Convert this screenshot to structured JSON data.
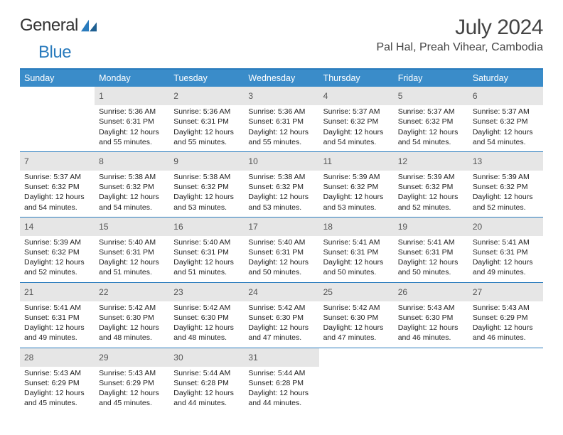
{
  "brand": {
    "word1": "General",
    "word2": "Blue"
  },
  "title": "July 2024",
  "location": "Pal Hal, Preah Vihear, Cambodia",
  "colors": {
    "accent": "#2a7bbd",
    "header_bg": "#3a8cc9",
    "day_bg": "#e6e6e6"
  },
  "weekdays": [
    "Sunday",
    "Monday",
    "Tuesday",
    "Wednesday",
    "Thursday",
    "Friday",
    "Saturday"
  ],
  "weeks": [
    [
      null,
      {
        "n": "1",
        "sr": "Sunrise: 5:36 AM",
        "ss": "Sunset: 6:31 PM",
        "dl": "Daylight: 12 hours and 55 minutes."
      },
      {
        "n": "2",
        "sr": "Sunrise: 5:36 AM",
        "ss": "Sunset: 6:31 PM",
        "dl": "Daylight: 12 hours and 55 minutes."
      },
      {
        "n": "3",
        "sr": "Sunrise: 5:36 AM",
        "ss": "Sunset: 6:31 PM",
        "dl": "Daylight: 12 hours and 55 minutes."
      },
      {
        "n": "4",
        "sr": "Sunrise: 5:37 AM",
        "ss": "Sunset: 6:32 PM",
        "dl": "Daylight: 12 hours and 54 minutes."
      },
      {
        "n": "5",
        "sr": "Sunrise: 5:37 AM",
        "ss": "Sunset: 6:32 PM",
        "dl": "Daylight: 12 hours and 54 minutes."
      },
      {
        "n": "6",
        "sr": "Sunrise: 5:37 AM",
        "ss": "Sunset: 6:32 PM",
        "dl": "Daylight: 12 hours and 54 minutes."
      }
    ],
    [
      {
        "n": "7",
        "sr": "Sunrise: 5:37 AM",
        "ss": "Sunset: 6:32 PM",
        "dl": "Daylight: 12 hours and 54 minutes."
      },
      {
        "n": "8",
        "sr": "Sunrise: 5:38 AM",
        "ss": "Sunset: 6:32 PM",
        "dl": "Daylight: 12 hours and 54 minutes."
      },
      {
        "n": "9",
        "sr": "Sunrise: 5:38 AM",
        "ss": "Sunset: 6:32 PM",
        "dl": "Daylight: 12 hours and 53 minutes."
      },
      {
        "n": "10",
        "sr": "Sunrise: 5:38 AM",
        "ss": "Sunset: 6:32 PM",
        "dl": "Daylight: 12 hours and 53 minutes."
      },
      {
        "n": "11",
        "sr": "Sunrise: 5:39 AM",
        "ss": "Sunset: 6:32 PM",
        "dl": "Daylight: 12 hours and 53 minutes."
      },
      {
        "n": "12",
        "sr": "Sunrise: 5:39 AM",
        "ss": "Sunset: 6:32 PM",
        "dl": "Daylight: 12 hours and 52 minutes."
      },
      {
        "n": "13",
        "sr": "Sunrise: 5:39 AM",
        "ss": "Sunset: 6:32 PM",
        "dl": "Daylight: 12 hours and 52 minutes."
      }
    ],
    [
      {
        "n": "14",
        "sr": "Sunrise: 5:39 AM",
        "ss": "Sunset: 6:32 PM",
        "dl": "Daylight: 12 hours and 52 minutes."
      },
      {
        "n": "15",
        "sr": "Sunrise: 5:40 AM",
        "ss": "Sunset: 6:31 PM",
        "dl": "Daylight: 12 hours and 51 minutes."
      },
      {
        "n": "16",
        "sr": "Sunrise: 5:40 AM",
        "ss": "Sunset: 6:31 PM",
        "dl": "Daylight: 12 hours and 51 minutes."
      },
      {
        "n": "17",
        "sr": "Sunrise: 5:40 AM",
        "ss": "Sunset: 6:31 PM",
        "dl": "Daylight: 12 hours and 50 minutes."
      },
      {
        "n": "18",
        "sr": "Sunrise: 5:41 AM",
        "ss": "Sunset: 6:31 PM",
        "dl": "Daylight: 12 hours and 50 minutes."
      },
      {
        "n": "19",
        "sr": "Sunrise: 5:41 AM",
        "ss": "Sunset: 6:31 PM",
        "dl": "Daylight: 12 hours and 50 minutes."
      },
      {
        "n": "20",
        "sr": "Sunrise: 5:41 AM",
        "ss": "Sunset: 6:31 PM",
        "dl": "Daylight: 12 hours and 49 minutes."
      }
    ],
    [
      {
        "n": "21",
        "sr": "Sunrise: 5:41 AM",
        "ss": "Sunset: 6:31 PM",
        "dl": "Daylight: 12 hours and 49 minutes."
      },
      {
        "n": "22",
        "sr": "Sunrise: 5:42 AM",
        "ss": "Sunset: 6:30 PM",
        "dl": "Daylight: 12 hours and 48 minutes."
      },
      {
        "n": "23",
        "sr": "Sunrise: 5:42 AM",
        "ss": "Sunset: 6:30 PM",
        "dl": "Daylight: 12 hours and 48 minutes."
      },
      {
        "n": "24",
        "sr": "Sunrise: 5:42 AM",
        "ss": "Sunset: 6:30 PM",
        "dl": "Daylight: 12 hours and 47 minutes."
      },
      {
        "n": "25",
        "sr": "Sunrise: 5:42 AM",
        "ss": "Sunset: 6:30 PM",
        "dl": "Daylight: 12 hours and 47 minutes."
      },
      {
        "n": "26",
        "sr": "Sunrise: 5:43 AM",
        "ss": "Sunset: 6:30 PM",
        "dl": "Daylight: 12 hours and 46 minutes."
      },
      {
        "n": "27",
        "sr": "Sunrise: 5:43 AM",
        "ss": "Sunset: 6:29 PM",
        "dl": "Daylight: 12 hours and 46 minutes."
      }
    ],
    [
      {
        "n": "28",
        "sr": "Sunrise: 5:43 AM",
        "ss": "Sunset: 6:29 PM",
        "dl": "Daylight: 12 hours and 45 minutes."
      },
      {
        "n": "29",
        "sr": "Sunrise: 5:43 AM",
        "ss": "Sunset: 6:29 PM",
        "dl": "Daylight: 12 hours and 45 minutes."
      },
      {
        "n": "30",
        "sr": "Sunrise: 5:44 AM",
        "ss": "Sunset: 6:28 PM",
        "dl": "Daylight: 12 hours and 44 minutes."
      },
      {
        "n": "31",
        "sr": "Sunrise: 5:44 AM",
        "ss": "Sunset: 6:28 PM",
        "dl": "Daylight: 12 hours and 44 minutes."
      },
      null,
      null,
      null
    ]
  ]
}
